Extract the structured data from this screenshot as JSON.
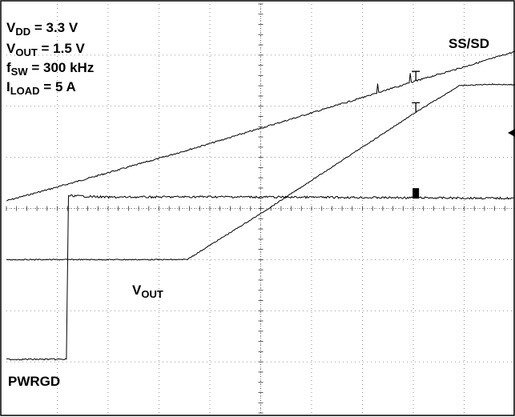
{
  "conditions": [
    {
      "main": "V",
      "sub": "DD",
      "rest": " = 3.3  V"
    },
    {
      "main": "V",
      "sub": "OUT",
      "rest": " = 1.5 V"
    },
    {
      "main": "f",
      "sub": "SW",
      "rest": " = 300 kHz"
    },
    {
      "main": "I",
      "sub": "LOAD",
      "rest": " = 5 A"
    }
  ],
  "chart_data": {
    "type": "line",
    "title": "",
    "xlabel": "",
    "ylabel": "",
    "grid": true,
    "x_divisions": 10,
    "y_divisions": 8,
    "xlim": [
      0,
      10
    ],
    "ylim": [
      0,
      8
    ],
    "units": "divisions",
    "series": [
      {
        "name": "SS/SD",
        "x": [
          0,
          1,
          2,
          3,
          4,
          5,
          6,
          7,
          8,
          9,
          10
        ],
        "y": [
          4.15,
          4.42,
          4.7,
          4.98,
          5.27,
          5.57,
          5.87,
          6.17,
          6.48,
          6.77,
          7.07
        ]
      },
      {
        "name": "VOUT",
        "x": [
          0,
          1,
          2,
          3,
          3.55,
          4,
          5,
          6,
          7,
          8,
          8.9,
          9.5,
          10
        ],
        "y": [
          3.0,
          3.0,
          3.0,
          3.0,
          3.0,
          3.28,
          3.9,
          4.55,
          5.2,
          5.85,
          6.4,
          6.43,
          6.42
        ]
      },
      {
        "name": "PWRGD",
        "x": [
          0,
          1.0,
          1.2,
          1.22,
          1.25,
          2,
          4,
          6,
          8,
          10
        ],
        "y": [
          1.05,
          1.05,
          1.05,
          4.25,
          4.25,
          4.22,
          4.23,
          4.22,
          4.21,
          4.2
        ]
      }
    ],
    "annotations": [
      {
        "text": "SS/SD",
        "series": "SS/SD"
      },
      {
        "text": "V",
        "sub": "OUT",
        "series": "VOUT"
      },
      {
        "text": "PWRGD",
        "series": "PWRGD"
      }
    ]
  }
}
